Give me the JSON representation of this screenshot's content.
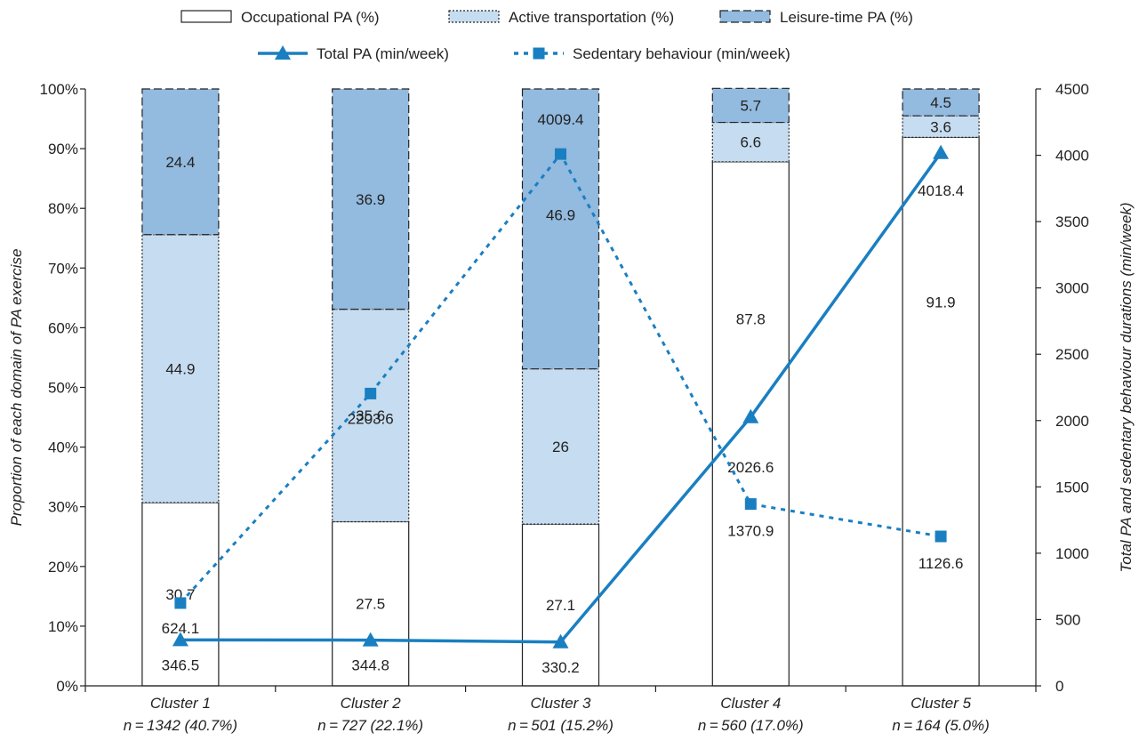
{
  "chart_data": {
    "type": "bar",
    "stacked": true,
    "categories": [
      {
        "name": "Cluster 1",
        "n": "n = 1342 (40.7%)"
      },
      {
        "name": "Cluster 2",
        "n": "n = 727 (22.1%)"
      },
      {
        "name": "Cluster 3",
        "n": "n = 501 (15.2%)"
      },
      {
        "name": "Cluster 4",
        "n": "n = 560 (17.0%)"
      },
      {
        "name": "Cluster 5",
        "n": "n = 164 (5.0%)"
      }
    ],
    "bar_series": [
      {
        "name": "Occupational PA (%)",
        "values": [
          30.7,
          27.5,
          27.1,
          87.8,
          91.9
        ],
        "labels": [
          "30.7",
          "27.5",
          "27.1",
          "87.8",
          "91.9"
        ],
        "color": "#ffffff",
        "border": "solid"
      },
      {
        "name": "Active transportation (%)",
        "values": [
          44.9,
          35.6,
          26.0,
          6.6,
          3.6
        ],
        "labels": [
          "44.9",
          "35.6",
          "26",
          "6.6",
          "3.6"
        ],
        "color": "#c6dcf0",
        "border": "dotted"
      },
      {
        "name": "Leisure-time PA (%)",
        "values": [
          24.4,
          36.9,
          46.9,
          5.7,
          4.5
        ],
        "labels": [
          "24.4",
          "36.9",
          "46.9",
          "5.7",
          "4.5"
        ],
        "color": "#93badf",
        "border": "dashed"
      }
    ],
    "line_series": [
      {
        "name": "Total PA (min/week)",
        "values": [
          346.5,
          344.8,
          330.2,
          2026.6,
          4018.4
        ],
        "labels": [
          "346.5",
          "344.8",
          "330.2",
          "2026.6",
          "4018.4"
        ],
        "color": "#1a7fc1",
        "marker": "triangle",
        "style": "solid"
      },
      {
        "name": "Sedentary behaviour (min/week)",
        "values": [
          624.1,
          2203.6,
          4009.4,
          1370.9,
          1126.6
        ],
        "labels": [
          "624.1",
          "2203.6",
          "4009.4",
          "1370.9",
          "1126.6"
        ],
        "color": "#1a7fc1",
        "marker": "square",
        "style": "dotted"
      }
    ],
    "y_left": {
      "label": "Proportion of each domain of PA exercise",
      "range": [
        0,
        100
      ],
      "ticks": [
        "0%",
        "10%",
        "20%",
        "30%",
        "40%",
        "50%",
        "60%",
        "70%",
        "80%",
        "90%",
        "100%"
      ]
    },
    "y_right": {
      "label": "Total PA and sedentary behaviour durations (min/week)",
      "range": [
        0,
        4500
      ],
      "ticks": [
        "0",
        "500",
        "1000",
        "1500",
        "2000",
        "2500",
        "3000",
        "3500",
        "4000",
        "4500"
      ]
    },
    "legend_position": "top",
    "grid": false
  }
}
